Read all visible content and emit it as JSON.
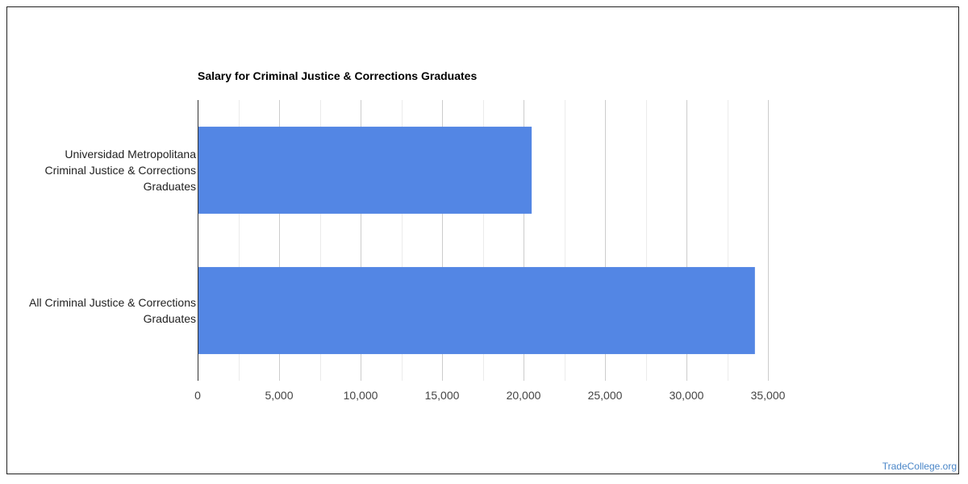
{
  "chart_data": {
    "type": "bar",
    "orientation": "horizontal",
    "title": "Salary for Criminal Justice & Corrections Graduates",
    "categories": [
      [
        "Universidad Metropolitana",
        "Criminal Justice & Corrections",
        "Graduates"
      ],
      [
        "All Criminal Justice & Corrections",
        "Graduates"
      ]
    ],
    "values": [
      20500,
      34200
    ],
    "xlim": [
      0,
      35000
    ],
    "x_ticks": [
      0,
      5000,
      10000,
      15000,
      20000,
      25000,
      30000,
      35000
    ],
    "x_tick_labels": [
      "0",
      "5,000",
      "10,000",
      "15,000",
      "20,000",
      "25,000",
      "30,000",
      "35,000"
    ],
    "bar_color": "#5386e4",
    "grid": true,
    "legend": "none"
  },
  "watermark": "TradeCollege.org"
}
